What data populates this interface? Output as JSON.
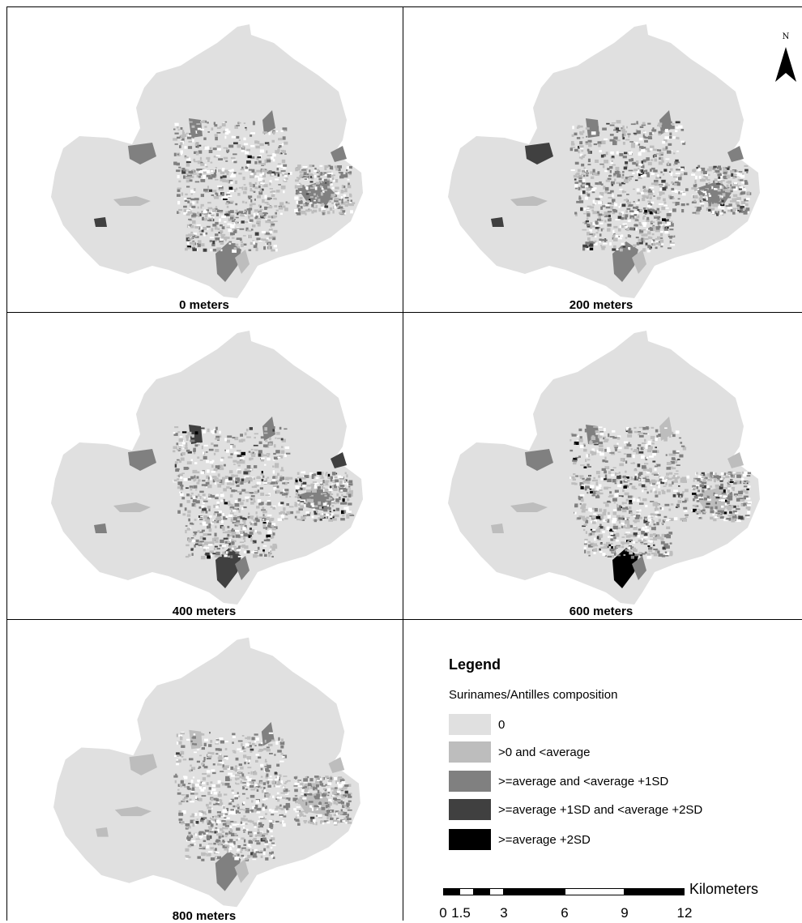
{
  "panels": [
    {
      "caption": "0 meters"
    },
    {
      "caption": "200 meters"
    },
    {
      "caption": "400 meters"
    },
    {
      "caption": "600 meters"
    },
    {
      "caption": "800 meters"
    }
  ],
  "legend": {
    "title": "Legend",
    "subtitle": "Surinames/Antilles composition",
    "classes": [
      {
        "label": "0",
        "color": "#e0e0e0"
      },
      {
        "label": ">0 and <average",
        "color": "#bdbdbd"
      },
      {
        "label": ">=average and <average +1SD",
        "color": "#808080"
      },
      {
        "label": ">=average +1SD and <average +2SD",
        "color": "#404040"
      },
      {
        "label": ">=average +2SD",
        "color": "#000000"
      }
    ]
  },
  "north_arrow": {
    "label": "N"
  },
  "scale_bar": {
    "unit": "Kilometers",
    "ticks": [
      "0",
      "1.5",
      "3",
      "6",
      "9",
      "12"
    ]
  }
}
